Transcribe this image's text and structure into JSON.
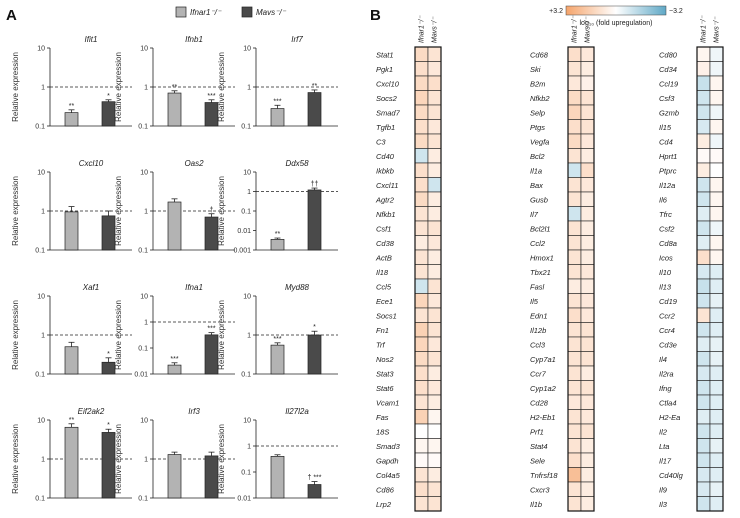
{
  "panels": {
    "a": "A",
    "b": "B"
  },
  "legend": {
    "items": [
      {
        "label": "Ifnar1⁻/⁻",
        "color": "#b3b3b3"
      },
      {
        "label": "Mavs⁻/⁻",
        "color": "#4a4a4a"
      }
    ]
  },
  "ylabel": "Relative expression",
  "chart_data": [
    {
      "type": "bar",
      "title": "Ifit1",
      "scale": "log",
      "ylim": [
        0.1,
        10
      ],
      "ticks": [
        "0.1",
        "1",
        "10"
      ],
      "categories": [
        "Ifnar1-/-",
        "Mavs-/-"
      ],
      "values": [
        0.22,
        0.42
      ],
      "errors": [
        0.04,
        0.05
      ],
      "marks": [
        "**",
        "*"
      ]
    },
    {
      "type": "bar",
      "title": "Ifnb1",
      "scale": "log",
      "ylim": [
        0.1,
        10
      ],
      "ticks": [
        "0.1",
        "1",
        "10"
      ],
      "categories": [
        "Ifnar1-/-",
        "Mavs-/-"
      ],
      "values": [
        0.7,
        0.4
      ],
      "errors": [
        0.1,
        0.07
      ],
      "marks": [
        "**",
        "***"
      ]
    },
    {
      "type": "bar",
      "title": "Irf7",
      "scale": "log",
      "ylim": [
        0.1,
        10
      ],
      "ticks": [
        "0.1",
        "1",
        "10"
      ],
      "categories": [
        "Ifnar1-/-",
        "Mavs-/-"
      ],
      "values": [
        0.28,
        0.72
      ],
      "errors": [
        0.06,
        0.12
      ],
      "marks": [
        "***",
        "**"
      ]
    },
    {
      "type": "bar",
      "title": "Cxcl10",
      "scale": "log",
      "ylim": [
        0.1,
        10
      ],
      "ticks": [
        "0.1",
        "1",
        "10"
      ],
      "categories": [
        "Ifnar1-/-",
        "Mavs-/-"
      ],
      "values": [
        0.95,
        0.75
      ],
      "errors": [
        0.35,
        0.25
      ],
      "marks": [
        "",
        ""
      ]
    },
    {
      "type": "bar",
      "title": "Oas2",
      "scale": "log",
      "ylim": [
        0.1,
        10
      ],
      "ticks": [
        "0.1",
        "1",
        "10"
      ],
      "categories": [
        "Ifnar1-/-",
        "Mavs-/-"
      ],
      "values": [
        1.7,
        0.7
      ],
      "errors": [
        0.35,
        0.15
      ],
      "marks": [
        "",
        "†"
      ]
    },
    {
      "type": "bar",
      "title": "Ddx58",
      "scale": "log",
      "ylim": [
        0.001,
        10
      ],
      "ticks": [
        "0.001",
        "0.01",
        "0.1",
        "1",
        "10"
      ],
      "categories": [
        "Ifnar1-/-",
        "Mavs-/-"
      ],
      "values": [
        0.0035,
        1.2
      ],
      "errors": [
        0.0006,
        0.3
      ],
      "marks": [
        "**",
        "††"
      ]
    },
    {
      "type": "bar",
      "title": "Xaf1",
      "scale": "log",
      "ylim": [
        0.1,
        10
      ],
      "ticks": [
        "0.1",
        "1",
        "10"
      ],
      "categories": [
        "Ifnar1-/-",
        "Mavs-/-"
      ],
      "values": [
        0.5,
        0.2
      ],
      "errors": [
        0.15,
        0.06
      ],
      "marks": [
        "",
        "*"
      ]
    },
    {
      "type": "bar",
      "title": "Ifna1",
      "scale": "log",
      "ylim": [
        0.01,
        10
      ],
      "ticks": [
        "0.01",
        "0.1",
        "1",
        "10"
      ],
      "categories": [
        "Ifnar1-/-",
        "Mavs-/-"
      ],
      "values": [
        0.022,
        0.32
      ],
      "errors": [
        0.005,
        0.07
      ],
      "marks": [
        "***",
        "***"
      ]
    },
    {
      "type": "bar",
      "title": "Myd88",
      "scale": "log",
      "ylim": [
        0.1,
        10
      ],
      "ticks": [
        "0.1",
        "1",
        "10"
      ],
      "categories": [
        "Ifnar1-/-",
        "Mavs-/-"
      ],
      "values": [
        0.55,
        1.0
      ],
      "errors": [
        0.08,
        0.25
      ],
      "marks": [
        "***",
        "*"
      ]
    },
    {
      "type": "bar",
      "title": "Eif2ak2",
      "scale": "log",
      "ylim": [
        0.1,
        10
      ],
      "ticks": [
        "0.1",
        "1",
        "10"
      ],
      "categories": [
        "Ifnar1-/-",
        "Mavs-/-"
      ],
      "values": [
        6.5,
        4.8
      ],
      "errors": [
        1.5,
        1.0
      ],
      "marks": [
        "**",
        "*"
      ]
    },
    {
      "type": "bar",
      "title": "Irf3",
      "scale": "log",
      "ylim": [
        0.1,
        10
      ],
      "ticks": [
        "0.1",
        "1",
        "10"
      ],
      "categories": [
        "Ifnar1-/-",
        "Mavs-/-"
      ],
      "values": [
        1.3,
        1.2
      ],
      "errors": [
        0.2,
        0.3
      ],
      "marks": [
        "",
        ""
      ]
    },
    {
      "type": "bar",
      "title": "Il27l2a",
      "scale": "log",
      "ylim": [
        0.01,
        10
      ],
      "ticks": [
        "0.01",
        "0.1",
        "1",
        "10"
      ],
      "categories": [
        "Ifnar1-/-",
        "Mavs-/-"
      ],
      "values": [
        0.4,
        0.033
      ],
      "errors": [
        0.06,
        0.01
      ],
      "marks": [
        "",
        "† ***"
      ]
    },
    {
      "type": "heatmap",
      "colorbar": {
        "max_label": "+3.2",
        "min_label": "−3.2",
        "label": "log₁₀ (fold upregulation)"
      },
      "column_headers": [
        "Ifnar1⁻/⁻",
        "Mavs⁻/⁻"
      ],
      "columns": [
        {
          "genes": [
            "Stat1",
            "Pgk1",
            "Cxcl10",
            "Socs2",
            "Smad7",
            "Tgfb1",
            "C3",
            "Cd40",
            "Ikbkb",
            "Cxcl11",
            "Agtr2",
            "Nfkb1",
            "Csf1",
            "Cd38",
            "ActB",
            "Il18",
            "Ccl5",
            "Ece1",
            "Socs1",
            "Fn1",
            "Trf",
            "Nos2",
            "Stat3",
            "Stat6",
            "Vcam1",
            "Fas",
            "18S",
            "Smad3",
            "Gapdh",
            "Col4a5",
            "Cd86",
            "Lrp2"
          ],
          "values": [
            [
              0.4,
              0.3
            ],
            [
              0.35,
              0.25
            ],
            [
              0.4,
              0.35
            ],
            [
              0.45,
              0.3
            ],
            [
              0.4,
              0.3
            ],
            [
              0.35,
              0.25
            ],
            [
              0.4,
              0.3
            ],
            [
              -0.3,
              0.2
            ],
            [
              0.35,
              0.2
            ],
            [
              0.35,
              -0.3
            ],
            [
              0.4,
              0.2
            ],
            [
              0.3,
              0.2
            ],
            [
              0.3,
              0.3
            ],
            [
              0.2,
              0.25
            ],
            [
              0.3,
              0.2
            ],
            [
              0.3,
              0.2
            ],
            [
              -0.3,
              0.3
            ],
            [
              0.45,
              0.25
            ],
            [
              0.3,
              0.3
            ],
            [
              0.5,
              0.3
            ],
            [
              0.45,
              0.25
            ],
            [
              0.4,
              0.3
            ],
            [
              0.35,
              0.2
            ],
            [
              0.35,
              0.25
            ],
            [
              0.3,
              0.2
            ],
            [
              0.5,
              0.1
            ],
            [
              0.0,
              0.0
            ],
            [
              0.1,
              0.1
            ],
            [
              0.05,
              0.05
            ],
            [
              0.3,
              0.2
            ],
            [
              0.35,
              0.3
            ],
            [
              0.3,
              0.3
            ]
          ]
        },
        {
          "genes": [
            "Cd68",
            "Ski",
            "B2m",
            "Nfkb2",
            "Selp",
            "Ptgs",
            "Vegfa",
            "Bcl2",
            "Il1a",
            "Bax",
            "Gusb",
            "Il7",
            "Bcl2l1",
            "Ccl2",
            "Hmox1",
            "Tbx21",
            "Fasl",
            "Il5",
            "Edn1",
            "Il12b",
            "Ccl3",
            "Cyp7a1",
            "Ccr7",
            "Cyp1a2",
            "Cd28",
            "H2-Eb1",
            "Prf1",
            "Stat4",
            "Sele",
            "Tnfrsf18",
            "Cxcr3",
            "Il1b"
          ],
          "values": [
            [
              0.35,
              0.25
            ],
            [
              0.3,
              0.2
            ],
            [
              0.25,
              0.15
            ],
            [
              0.4,
              0.3
            ],
            [
              0.45,
              0.3
            ],
            [
              0.35,
              0.3
            ],
            [
              0.4,
              0.25
            ],
            [
              0.3,
              0.2
            ],
            [
              -0.3,
              0.35
            ],
            [
              0.3,
              0.25
            ],
            [
              0.3,
              0.2
            ],
            [
              -0.3,
              0.2
            ],
            [
              0.3,
              0.2
            ],
            [
              0.3,
              0.2
            ],
            [
              0.3,
              0.2
            ],
            [
              0.3,
              0.25
            ],
            [
              0.2,
              0.2
            ],
            [
              0.3,
              0.25
            ],
            [
              0.35,
              0.25
            ],
            [
              0.3,
              0.3
            ],
            [
              0.3,
              0.3
            ],
            [
              0.3,
              0.3
            ],
            [
              0.3,
              0.2
            ],
            [
              0.3,
              0.3
            ],
            [
              0.25,
              0.25
            ],
            [
              0.3,
              0.25
            ],
            [
              0.3,
              0.3
            ],
            [
              0.3,
              0.2
            ],
            [
              0.35,
              0.2
            ],
            [
              0.7,
              0.2
            ],
            [
              0.3,
              0.2
            ],
            [
              0.3,
              0.2
            ]
          ]
        },
        {
          "genes": [
            "Cd80",
            "Cd34",
            "Ccl19",
            "Csf3",
            "Gzmb",
            "Il15",
            "Cd4",
            "Hprt1",
            "Ptprc",
            "Il12a",
            "Il6",
            "Tfrc",
            "Csf2",
            "Cd8a",
            "Icos",
            "Il10",
            "Il13",
            "Cd19",
            "Ccr2",
            "Ccr4",
            "Cd3e",
            "Il4",
            "Il2ra",
            "Ifng",
            "Ctla4",
            "H2-Ea",
            "Il2",
            "Lta",
            "Il17",
            "Cd40lg",
            "Il9",
            "Il3"
          ],
          "values": [
            [
              0.1,
              -0.1
            ],
            [
              0.15,
              -0.1
            ],
            [
              -0.35,
              0.1
            ],
            [
              -0.3,
              0.1
            ],
            [
              -0.3,
              -0.1
            ],
            [
              -0.25,
              0.1
            ],
            [
              0.2,
              -0.1
            ],
            [
              0.05,
              0.05
            ],
            [
              0.2,
              0.0
            ],
            [
              -0.3,
              0.1
            ],
            [
              -0.3,
              0.1
            ],
            [
              -0.2,
              0.1
            ],
            [
              -0.3,
              -0.1
            ],
            [
              -0.2,
              0.1
            ],
            [
              0.35,
              0.1
            ],
            [
              -0.25,
              -0.2
            ],
            [
              -0.35,
              -0.2
            ],
            [
              -0.3,
              -0.15
            ],
            [
              0.3,
              -0.2
            ],
            [
              -0.3,
              -0.2
            ],
            [
              -0.2,
              -0.15
            ],
            [
              -0.3,
              -0.15
            ],
            [
              -0.25,
              -0.2
            ],
            [
              -0.3,
              -0.2
            ],
            [
              -0.3,
              -0.2
            ],
            [
              -0.2,
              -0.2
            ],
            [
              -0.3,
              -0.2
            ],
            [
              -0.3,
              -0.15
            ],
            [
              -0.3,
              -0.2
            ],
            [
              -0.25,
              -0.2
            ],
            [
              -0.25,
              -0.15
            ],
            [
              -0.3,
              -0.2
            ]
          ]
        }
      ]
    }
  ]
}
